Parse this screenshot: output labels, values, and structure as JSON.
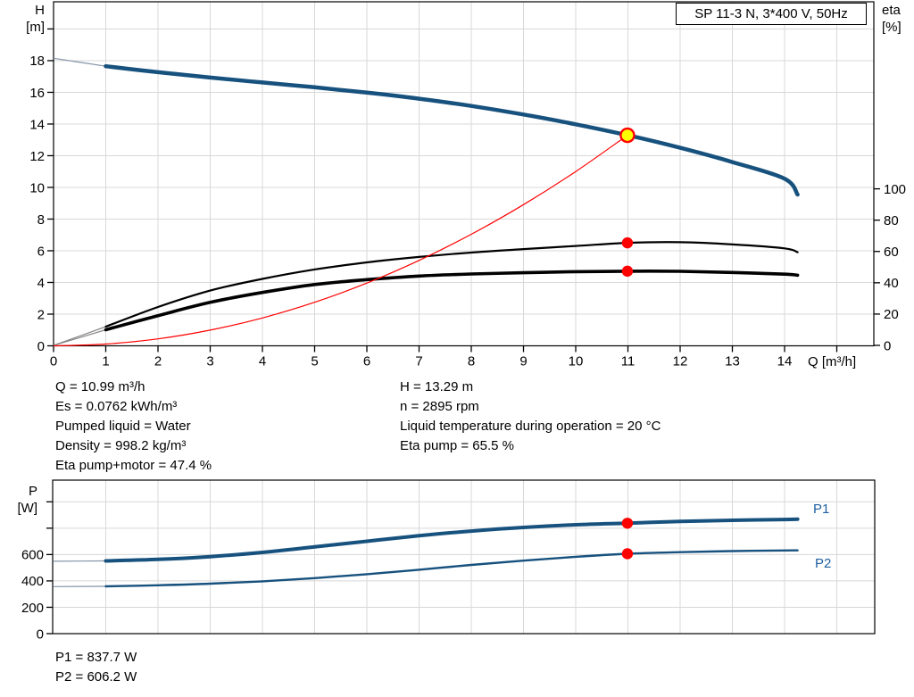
{
  "title_box": "SP 11-3 N, 3*400 V, 50Hz",
  "axis_headers": {
    "h_unit_1": "H",
    "h_unit_2": "[m]",
    "eta_unit_1": "eta",
    "eta_unit_2": "[%]",
    "q_axis": "Q [m³/h]",
    "p_unit_1": "P",
    "p_unit_2": "[W]"
  },
  "series_labels": {
    "p1": "P1",
    "p2": "P2"
  },
  "annotations": {
    "left": [
      "Q = 10.99 m³/h",
      "Es = 0.0762 kWh/m³",
      "Pumped liquid = Water",
      "Density = 998.2 kg/m³",
      "Eta pump+motor = 47.4 %"
    ],
    "right": [
      "H = 13.29 m",
      "n = 2895 rpm",
      "Liquid temperature during operation = 20 °C",
      "Eta pump = 65.5 %"
    ]
  },
  "footer": [
    "P1 = 837.7 W",
    "P2 = 606.2 W"
  ],
  "colors": {
    "curve_blue": "#17517E",
    "thin_blue": "#8494A8",
    "black": "#000000",
    "thin_gray": "#888888",
    "red": "#FF0000",
    "yellow": "#FFFF00",
    "grid": "#D8D8D8",
    "frame": "#000000",
    "label_blue": "#1F5FA0"
  },
  "chart_data": [
    {
      "type": "line",
      "title": "SP 11-3 N, 3*400 V, 50Hz",
      "xlabel": "Q [m³/h]",
      "ylabel_left": "H [m]",
      "ylabel_right": "eta [%]",
      "xlim": [
        0,
        15.7
      ],
      "ylim_left": [
        0,
        21.7
      ],
      "ylim_right": [
        0,
        110
      ],
      "grid": true,
      "x_ticks": {
        "values": [
          0,
          1,
          2,
          3,
          4,
          5,
          6,
          7,
          8,
          9,
          10,
          11,
          12,
          13,
          14,
          15
        ],
        "labeled_max": 14
      },
      "y_left_ticks": {
        "axis": "H",
        "values": [
          0,
          2,
          4,
          6,
          8,
          10,
          12,
          14,
          16,
          18,
          20
        ],
        "labeled_max": 18
      },
      "y_right_ticks": {
        "axis": "eta",
        "values": [
          0,
          20,
          40,
          60,
          80,
          100
        ],
        "labeled_max": 100
      },
      "grid_x": [
        1,
        2,
        3,
        4,
        5,
        6,
        7,
        8,
        9,
        10,
        11,
        12,
        13,
        14,
        15
      ],
      "grid_y": {
        "axis": "H",
        "values": [
          2,
          4,
          6,
          8,
          10,
          12,
          14,
          16,
          18,
          20
        ]
      },
      "x": [
        0,
        1,
        2,
        3,
        4,
        5,
        6,
        7,
        8,
        9,
        10,
        11,
        12,
        13,
        14,
        14.25
      ],
      "series": [
        {
          "name": "pump-curve-qh",
          "axis": "H",
          "color": "#17517E",
          "width": 4.5,
          "thin_color": "#8494A8",
          "thin_until": 1,
          "values": [
            18.15,
            17.65,
            17.27,
            16.93,
            16.62,
            16.32,
            15.98,
            15.6,
            15.14,
            14.6,
            13.98,
            13.29,
            12.5,
            11.6,
            10.55,
            9.55
          ]
        },
        {
          "name": "eta-pump-curve",
          "axis": "eta",
          "color": "#000000",
          "width": 2.2,
          "thin_color": "#888888",
          "thin_until": 1,
          "values": [
            0,
            12,
            24.5,
            35,
            42.5,
            48.5,
            53,
            56.5,
            59.3,
            61.5,
            63.5,
            65.5,
            65.9,
            64.5,
            62,
            59.5
          ]
        },
        {
          "name": "eta-pump-motor-curve",
          "axis": "eta",
          "color": "#000000",
          "width": 3.6,
          "thin_color": "#888888",
          "thin_until": 1,
          "values": [
            0,
            10,
            19,
            27.5,
            33.8,
            38.9,
            42,
            44.3,
            45.6,
            46.4,
            47.1,
            47.4,
            47.3,
            46.6,
            45.5,
            44.8
          ]
        },
        {
          "name": "system-curve",
          "axis": "H",
          "color": "#FF0000",
          "width": 1.2,
          "x": [
            0,
            1,
            2,
            3,
            4,
            5,
            6,
            7,
            8,
            9,
            10,
            10.99
          ],
          "values": [
            0,
            0.11,
            0.44,
            0.99,
            1.76,
            2.75,
            3.96,
            5.39,
            7.04,
            8.91,
            11.0,
            13.29
          ]
        }
      ],
      "markers": [
        {
          "name": "duty-point",
          "x": 10.99,
          "axis": "H",
          "value": 13.29,
          "style": "duty"
        },
        {
          "name": "eta-pump-operating-point",
          "x": 10.99,
          "axis": "eta",
          "value": 65.5,
          "style": "dot"
        },
        {
          "name": "eta-pump-motor-operating-point",
          "x": 10.99,
          "axis": "eta",
          "value": 47.4,
          "style": "dot"
        }
      ]
    },
    {
      "type": "line",
      "title": "",
      "xlabel": "",
      "ylabel_left": "P [W]",
      "xlim": [
        0,
        15.7
      ],
      "ylim_left": [
        0,
        1165
      ],
      "grid": true,
      "y_left_ticks": {
        "axis": "P",
        "values": [
          0,
          200,
          400,
          600,
          800,
          1000
        ],
        "labeled_max": 600
      },
      "grid_x": [
        1,
        2,
        3,
        4,
        5,
        6,
        7,
        8,
        9,
        10,
        11,
        12,
        13,
        14,
        15
      ],
      "grid_y": {
        "axis": "P",
        "values": [
          200,
          400,
          600,
          800,
          1000
        ]
      },
      "x": [
        0,
        1,
        2,
        3,
        4,
        5,
        6,
        7,
        8,
        9,
        10,
        11,
        12,
        13,
        14,
        14.25
      ],
      "series": [
        {
          "name": "p1-curve",
          "axis": "P",
          "color": "#17517E",
          "width": 4,
          "thin_color": "#8494A8",
          "thin_until": 1,
          "values": [
            549,
            552,
            563,
            584,
            616,
            658,
            701,
            743,
            778,
            806,
            826,
            838,
            851,
            860,
            866,
            868
          ]
        },
        {
          "name": "p2-curve",
          "axis": "P",
          "color": "#17517E",
          "width": 2.4,
          "thin_color": "#8494A8",
          "thin_until": 1,
          "values": [
            357,
            359,
            367,
            379,
            397,
            421,
            451,
            485,
            521,
            554,
            583,
            606,
            618,
            626,
            631,
            632
          ]
        }
      ],
      "markers": [
        {
          "name": "p1-operating-point",
          "x": 10.99,
          "axis": "P",
          "value": 837.7,
          "style": "dot"
        },
        {
          "name": "p2-operating-point",
          "x": 10.99,
          "axis": "P",
          "value": 606.2,
          "style": "dot"
        }
      ]
    }
  ]
}
